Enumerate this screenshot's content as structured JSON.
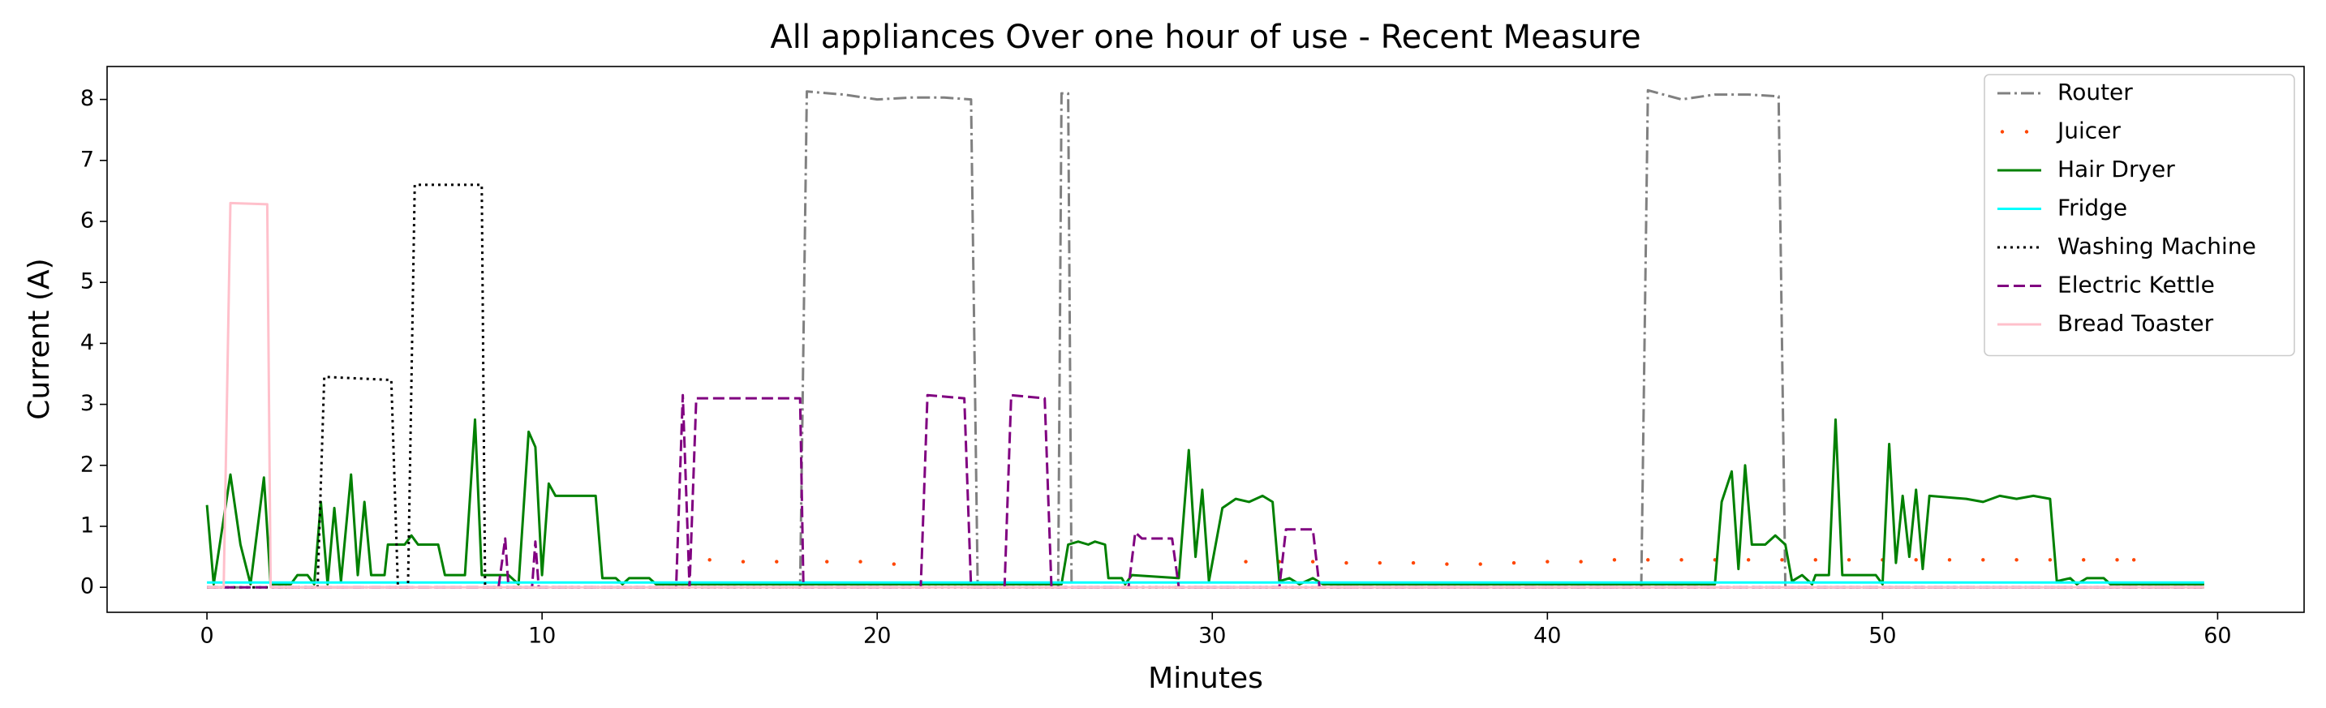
{
  "chart_data": {
    "type": "line",
    "title": "All appliances Over one hour of use - Recent Measure",
    "x_label": "Minutes",
    "y_label": "Current (A)",
    "xlim": [
      -2.98,
      62.58
    ],
    "ylim": [
      -0.41,
      8.54
    ],
    "xticks": [
      0,
      10,
      20,
      30,
      40,
      50,
      60
    ],
    "yticks": [
      0,
      1,
      2,
      3,
      4,
      5,
      6,
      7,
      8
    ],
    "legend": "upper right",
    "series": [
      {
        "name": "Router",
        "color": "#808080",
        "linestyle": "dashdot",
        "x": [
          0,
          17.7,
          17.9,
          19,
          20,
          21,
          22,
          22.8,
          23,
          25.4,
          25.5,
          25.7,
          25.8,
          42.8,
          43,
          44,
          45,
          46,
          46.9,
          47.1,
          59.6
        ],
        "values": [
          0,
          0,
          8.13,
          8.08,
          8.0,
          8.03,
          8.03,
          8.0,
          0,
          0,
          8.1,
          8.1,
          0,
          0,
          8.15,
          8.0,
          8.08,
          8.08,
          8.05,
          0,
          0
        ]
      },
      {
        "name": "Juicer",
        "color": "#ff4500",
        "linestyle": "dotted",
        "x": [
          15,
          16,
          17,
          18.5,
          19.5,
          20.5,
          31,
          32,
          33,
          34,
          35,
          36,
          37,
          38,
          39,
          40,
          41,
          42,
          43,
          44,
          45,
          46,
          47,
          48,
          49,
          50,
          51,
          52,
          53,
          54,
          55,
          56,
          57,
          57.5
        ],
        "values": [
          0.45,
          0.42,
          0.42,
          0.42,
          0.42,
          0.38,
          0.42,
          0.42,
          0.42,
          0.4,
          0.4,
          0.4,
          0.38,
          0.38,
          0.4,
          0.42,
          0.42,
          0.45,
          0.45,
          0.45,
          0.45,
          0.45,
          0.45,
          0.45,
          0.45,
          0.45,
          0.45,
          0.45,
          0.45,
          0.45,
          0.45,
          0.45,
          0.45,
          0.45
        ]
      },
      {
        "name": "Hair Dryer",
        "color": "#008000",
        "linestyle": "solid",
        "x": [
          0,
          0.2,
          0.7,
          1.0,
          1.3,
          1.7,
          1.9,
          2.5,
          2.7,
          3.0,
          3.2,
          3.4,
          3.6,
          3.8,
          4.0,
          4.3,
          4.5,
          4.7,
          4.9,
          5.3,
          5.4,
          5.9,
          6.1,
          6.3,
          6.9,
          7.1,
          7.7,
          8.0,
          8.2,
          9.0,
          9.3,
          9.6,
          9.8,
          10.0,
          10.2,
          10.4,
          11.6,
          11.8,
          12.2,
          12.4,
          12.6,
          13.2,
          13.4,
          25.5,
          25.7,
          26.0,
          26.3,
          26.5,
          26.8,
          26.9,
          27.3,
          27.4,
          27.6,
          29.0,
          29.3,
          29.5,
          29.7,
          29.9,
          30.3,
          30.7,
          31.1,
          31.5,
          31.8,
          32.0,
          32.3,
          32.6,
          33.0,
          33.3,
          45,
          45.2,
          45.5,
          45.7,
          45.9,
          46.1,
          46.5,
          46.8,
          47.1,
          47.3,
          47.6,
          47.9,
          48.0,
          48.4,
          48.6,
          48.8,
          49.8,
          50.0,
          50.2,
          50.4,
          50.6,
          50.8,
          51.0,
          51.2,
          51.4,
          52.5,
          53,
          53.5,
          54.0,
          54.5,
          55.0,
          55.2,
          55.6,
          55.8,
          56.1,
          56.6,
          56.8,
          59.6
        ],
        "values": [
          1.35,
          0.05,
          1.85,
          0.7,
          0.05,
          1.8,
          0.05,
          0.05,
          0.2,
          0.2,
          0.05,
          1.4,
          0.05,
          1.3,
          0.1,
          1.85,
          0.2,
          1.4,
          0.2,
          0.2,
          0.7,
          0.7,
          0.85,
          0.7,
          0.7,
          0.2,
          0.2,
          2.75,
          0.2,
          0.2,
          0.05,
          2.55,
          2.3,
          0.2,
          1.7,
          1.5,
          1.5,
          0.15,
          0.15,
          0.05,
          0.15,
          0.15,
          0.05,
          0.05,
          0.7,
          0.75,
          0.7,
          0.75,
          0.7,
          0.15,
          0.15,
          0.05,
          0.2,
          0.15,
          2.25,
          0.5,
          1.6,
          0.1,
          1.3,
          1.45,
          1.4,
          1.5,
          1.4,
          0.1,
          0.15,
          0.05,
          0.15,
          0.05,
          0.05,
          1.4,
          1.9,
          0.3,
          2.0,
          0.7,
          0.7,
          0.85,
          0.7,
          0.1,
          0.2,
          0.05,
          0.2,
          0.2,
          2.75,
          0.2,
          0.2,
          0.05,
          2.35,
          0.4,
          1.5,
          0.5,
          1.6,
          0.3,
          1.5,
          1.45,
          1.4,
          1.5,
          1.45,
          1.5,
          1.45,
          0.1,
          0.15,
          0.05,
          0.15,
          0.15,
          0.05,
          0.05
        ]
      },
      {
        "name": "Fridge",
        "color": "#00ffff",
        "linestyle": "solid",
        "x": [
          0,
          59.6
        ],
        "values": [
          0.08,
          0.08
        ]
      },
      {
        "name": "Washing Machine",
        "color": "#000000",
        "linestyle": "dotted",
        "x": [
          0,
          3.3,
          3.5,
          5.5,
          5.7,
          6.0,
          6.2,
          8.2,
          8.3,
          59.6
        ],
        "values": [
          0,
          0,
          3.45,
          3.4,
          0,
          0,
          6.6,
          6.6,
          0,
          0
        ]
      },
      {
        "name": "Electric Kettle",
        "color": "#800080",
        "linestyle": "dashed",
        "x": [
          0,
          8.7,
          8.9,
          9.0,
          9.7,
          9.8,
          9.9,
          14.0,
          14.2,
          14.4,
          14.6,
          17.7,
          17.8,
          21.3,
          21.5,
          22.6,
          22.8,
          23.8,
          24.0,
          25.0,
          25.2,
          27.5,
          27.7,
          27.9,
          28.8,
          29.0,
          32.0,
          32.2,
          33.0,
          33.2,
          59.6
        ],
        "values": [
          0,
          0,
          0.8,
          0,
          0,
          0.75,
          0,
          0,
          3.15,
          0,
          3.1,
          3.1,
          0,
          0,
          3.15,
          3.1,
          0,
          0,
          3.15,
          3.1,
          0,
          0,
          0.9,
          0.8,
          0.8,
          0,
          0,
          0.95,
          0.95,
          0,
          0
        ]
      },
      {
        "name": "Bread Toaster",
        "color": "#ffc0cb",
        "linestyle": "solid",
        "x": [
          0,
          0.5,
          0.7,
          1.8,
          1.9,
          59.6
        ],
        "values": [
          0,
          0,
          6.3,
          6.28,
          0,
          0
        ]
      }
    ]
  }
}
